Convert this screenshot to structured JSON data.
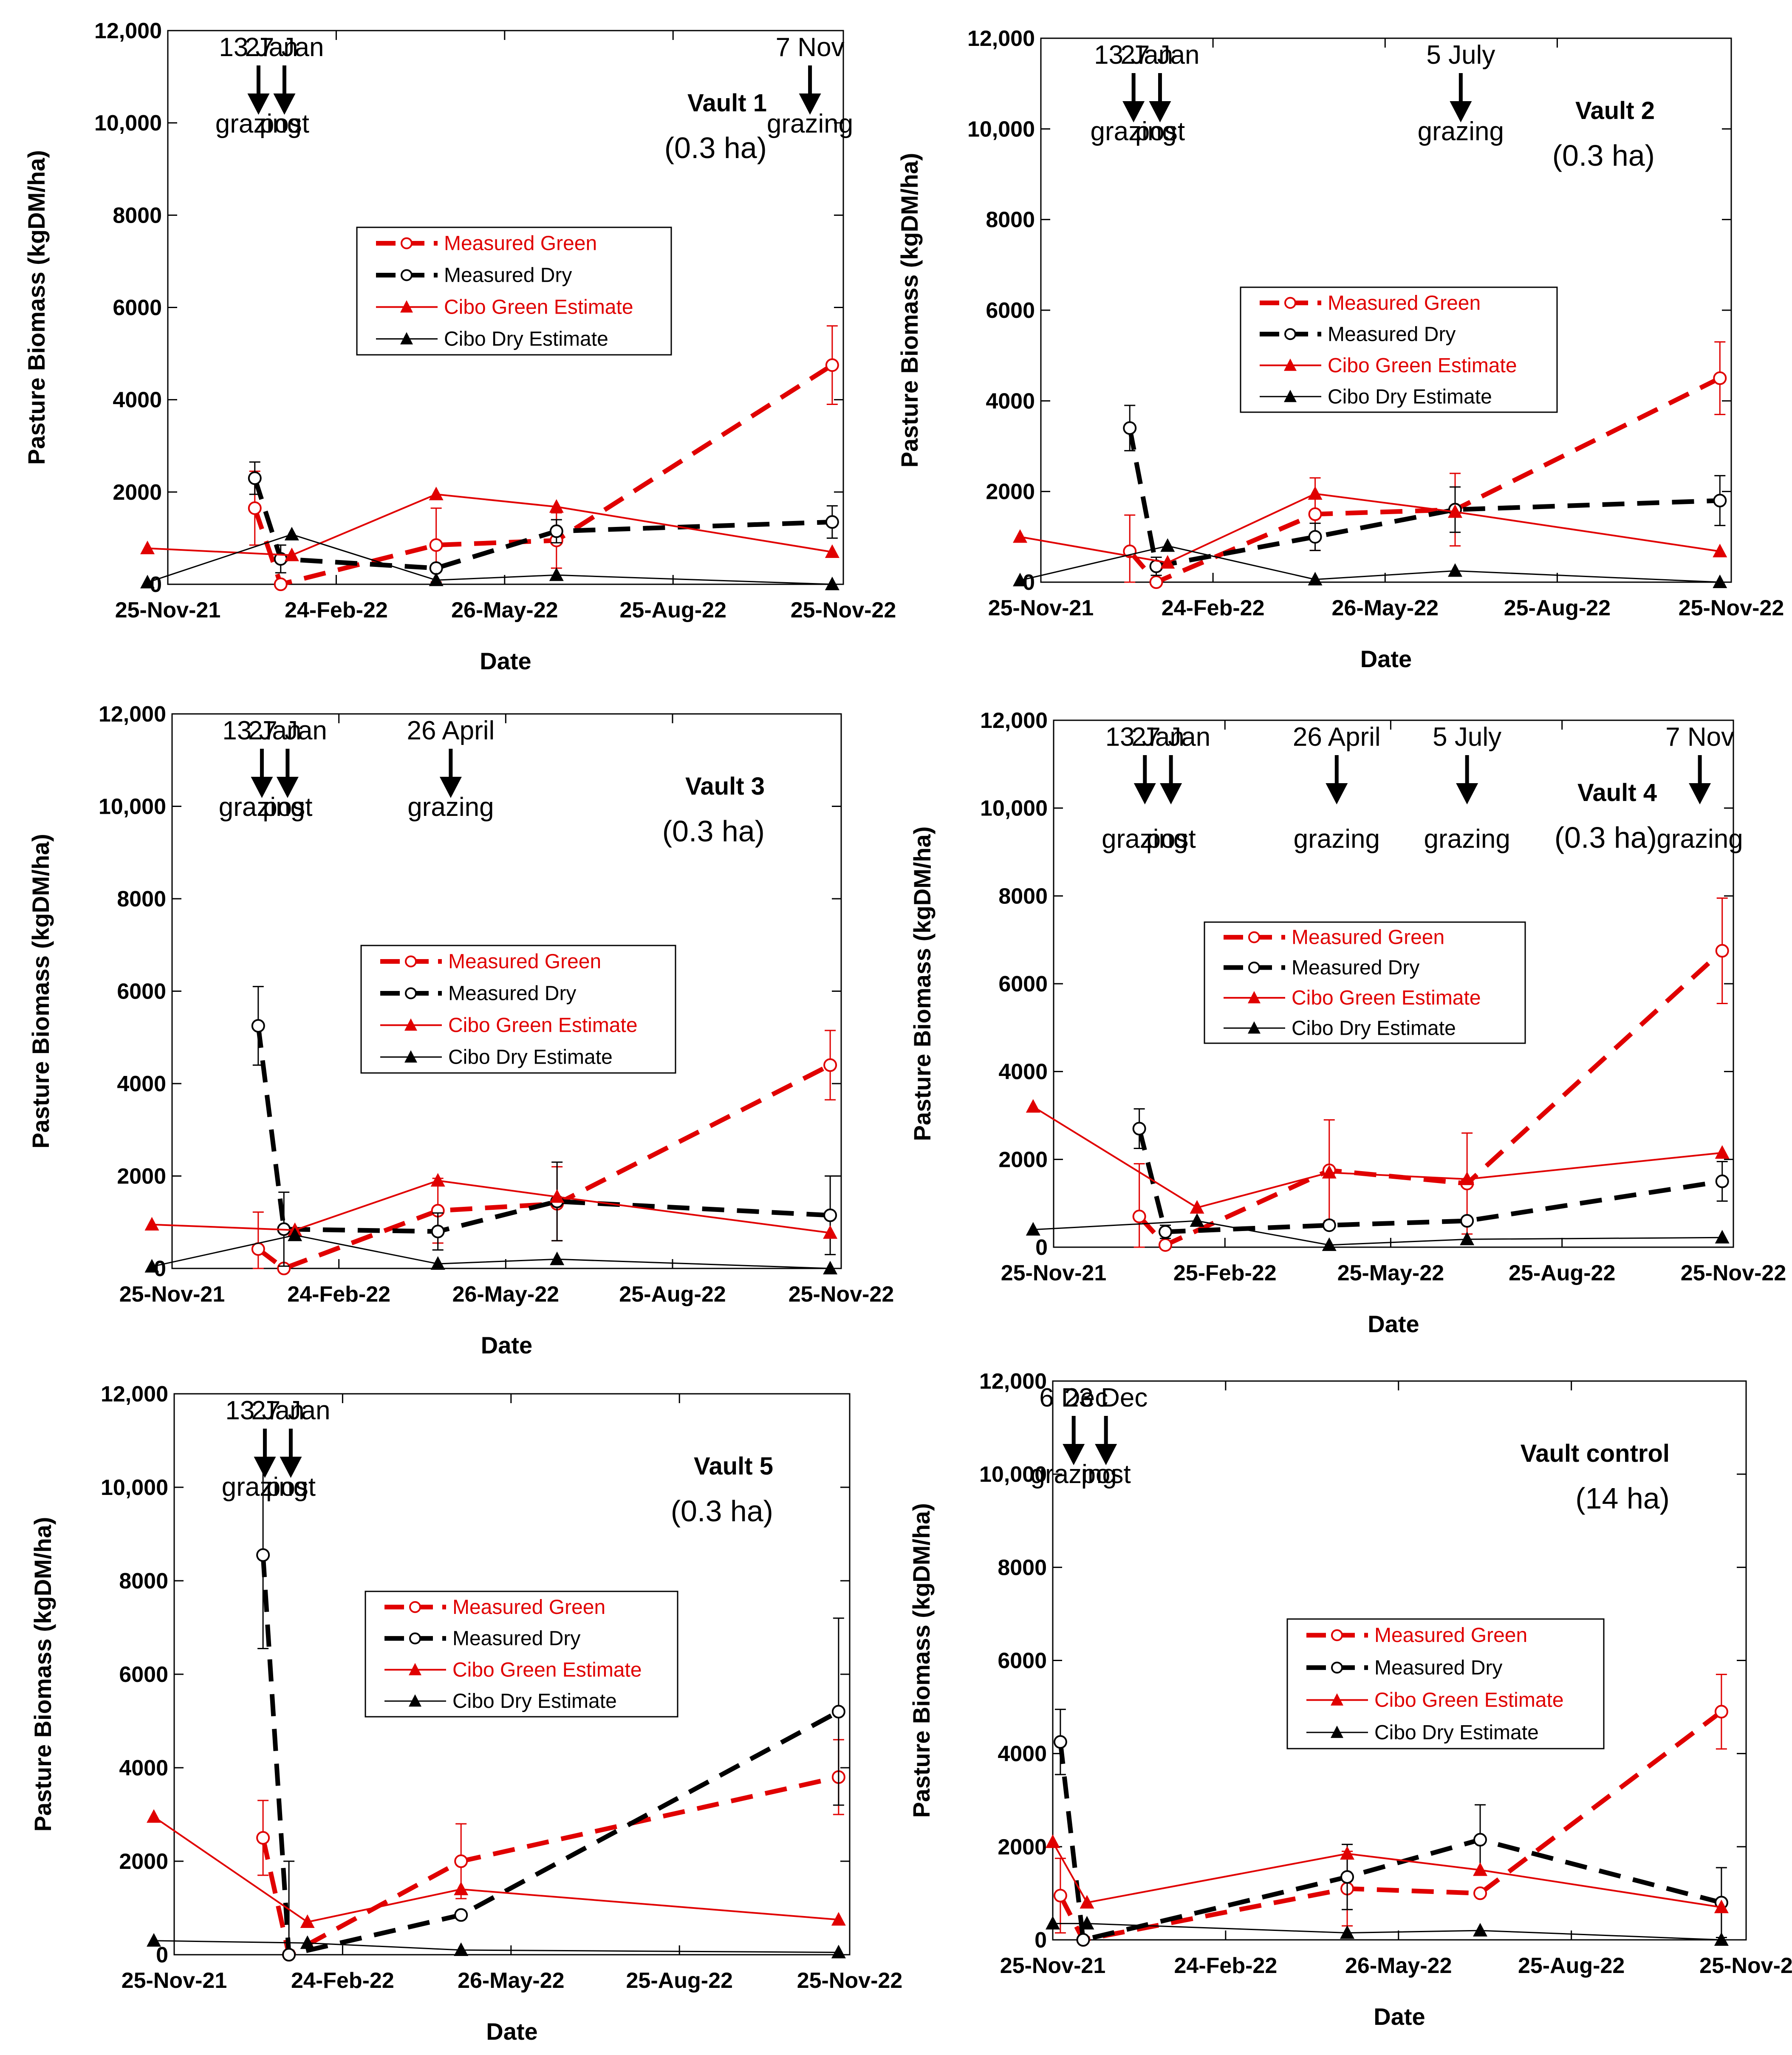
{
  "chart_data": [
    {
      "type": "line",
      "title": "Vault 1",
      "area_label": "(0.3 ha)",
      "xlabel": "Date",
      "ylabel": "Pasture Biomass (kgDM/ha)",
      "ylim": [
        0,
        12000
      ],
      "xlim_days": [
        0,
        365
      ],
      "y_ticks": [
        "0",
        "2000",
        "4000",
        "6000",
        "8000",
        "10,000",
        "12,000"
      ],
      "x_ticks": [
        {
          "label": "25-Nov-21",
          "day": 0
        },
        {
          "label": "24-Feb-22",
          "day": 91
        },
        {
          "label": "26-May-22",
          "day": 182
        },
        {
          "label": "25-Aug-22",
          "day": 273
        },
        {
          "label": "25-Nov-22",
          "day": 365
        }
      ],
      "annotations": [
        {
          "date": "13 Jan",
          "event": "grazing",
          "day": 49
        },
        {
          "date": "27 Jan",
          "event": "post",
          "day": 63
        },
        {
          "date": "7 Nov",
          "event": "grazing",
          "day": 347
        }
      ],
      "legend": [
        "Measured Green",
        "Measured Dry",
        "Cibo Green Estimate",
        "Cibo Dry Estimate"
      ],
      "series": [
        {
          "name": "Measured Green",
          "x": [
            47,
            61,
            145,
            210,
            359
          ],
          "y": [
            1650,
            0,
            850,
            950,
            4750
          ],
          "err": [
            800,
            0,
            800,
            600,
            850
          ]
        },
        {
          "name": "Measured Dry",
          "x": [
            47,
            61,
            145,
            210,
            359
          ],
          "y": [
            2300,
            550,
            350,
            1150,
            1350
          ],
          "err": [
            350,
            300,
            0,
            250,
            350
          ]
        },
        {
          "name": "Cibo Green Estimate",
          "x": [
            -11,
            67,
            145,
            210,
            359
          ],
          "y": [
            780,
            630,
            1950,
            1680,
            700
          ]
        },
        {
          "name": "Cibo Dry Estimate",
          "x": [
            -11,
            67,
            145,
            210,
            359
          ],
          "y": [
            40,
            1080,
            90,
            200,
            0
          ]
        }
      ]
    },
    {
      "type": "line",
      "title": "Vault 2",
      "area_label": "(0.3 ha)",
      "xlabel": "Date",
      "ylabel": "Pasture Biomass (kgDM/ha)",
      "ylim": [
        0,
        12000
      ],
      "xlim_days": [
        0,
        365
      ],
      "y_ticks": [
        "0",
        "2000",
        "4000",
        "6000",
        "8000",
        "10,000",
        "12,000"
      ],
      "x_ticks": [
        {
          "label": "25-Nov-21",
          "day": 0
        },
        {
          "label": "24-Feb-22",
          "day": 91
        },
        {
          "label": "26-May-22",
          "day": 182
        },
        {
          "label": "25-Aug-22",
          "day": 273
        },
        {
          "label": "25-Nov-22",
          "day": 365
        }
      ],
      "annotations": [
        {
          "date": "13 Jan",
          "event": "grazing",
          "day": 49
        },
        {
          "date": "27 Jan",
          "event": "post",
          "day": 63
        },
        {
          "date": "5 July",
          "event": "grazing",
          "day": 222
        }
      ],
      "legend": [
        "Measured Green",
        "Measured Dry",
        "Cibo Green Estimate",
        "Cibo Dry Estimate"
      ],
      "series": [
        {
          "name": "Measured Green",
          "x": [
            47,
            61,
            145,
            219,
            359
          ],
          "y": [
            680,
            0,
            1500,
            1600,
            4500
          ],
          "err": [
            800,
            0,
            800,
            800,
            800
          ]
        },
        {
          "name": "Measured Dry",
          "x": [
            47,
            61,
            145,
            219,
            359
          ],
          "y": [
            3400,
            350,
            1000,
            1600,
            1800
          ],
          "err": [
            500,
            200,
            300,
            500,
            550
          ]
        },
        {
          "name": "Cibo Green Estimate",
          "x": [
            -11,
            67,
            145,
            219,
            359
          ],
          "y": [
            1000,
            430,
            1950,
            1550,
            680
          ]
        },
        {
          "name": "Cibo Dry Estimate",
          "x": [
            -11,
            67,
            145,
            219,
            359
          ],
          "y": [
            40,
            800,
            60,
            250,
            0
          ]
        }
      ]
    },
    {
      "type": "line",
      "title": "Vault 3",
      "area_label": "(0.3 ha)",
      "xlabel": "Date",
      "ylabel": "Pasture Biomass (kgDM/ha)",
      "ylim": [
        0,
        12000
      ],
      "xlim_days": [
        0,
        365
      ],
      "y_ticks": [
        "0",
        "2000",
        "4000",
        "6000",
        "8000",
        "10,000",
        "12,000"
      ],
      "x_ticks": [
        {
          "label": "25-Nov-21",
          "day": 0
        },
        {
          "label": "24-Feb-22",
          "day": 91
        },
        {
          "label": "26-May-22",
          "day": 182
        },
        {
          "label": "25-Aug-22",
          "day": 273
        },
        {
          "label": "25-Nov-22",
          "day": 365
        }
      ],
      "annotations": [
        {
          "date": "13 Jan",
          "event": "grazing",
          "day": 49
        },
        {
          "date": "27 Jan",
          "event": "post",
          "day": 63
        },
        {
          "date": "26 April",
          "event": "grazing",
          "day": 152
        }
      ],
      "legend": [
        "Measured Green",
        "Measured Dry",
        "Cibo Green Estimate",
        "Cibo Dry Estimate"
      ],
      "series": [
        {
          "name": "Measured Green",
          "x": [
            47,
            61,
            145,
            210,
            359
          ],
          "y": [
            420,
            0,
            1250,
            1400,
            4400
          ],
          "err": [
            800,
            0,
            700,
            800,
            750
          ]
        },
        {
          "name": "Measured Dry",
          "x": [
            47,
            61,
            145,
            210,
            359
          ],
          "y": [
            5250,
            850,
            800,
            1450,
            1150
          ],
          "err": [
            850,
            800,
            400,
            850,
            850
          ]
        },
        {
          "name": "Cibo Green Estimate",
          "x": [
            -11,
            67,
            145,
            210,
            359
          ],
          "y": [
            950,
            830,
            1900,
            1550,
            770
          ]
        },
        {
          "name": "Cibo Dry Estimate",
          "x": [
            -11,
            67,
            145,
            210,
            359
          ],
          "y": [
            40,
            720,
            100,
            200,
            0
          ]
        }
      ]
    },
    {
      "type": "line",
      "title": "Vault 4",
      "area_label": "(0.3 ha)",
      "xlabel": "Date",
      "ylabel": "Pasture Biomass (kgDM/ha)",
      "ylim": [
        0,
        12000
      ],
      "xlim_days": [
        0,
        365
      ],
      "y_ticks": [
        "0",
        "2000",
        "4000",
        "6000",
        "8000",
        "10,000",
        "12,000"
      ],
      "x_ticks": [
        {
          "label": "25-Nov-21",
          "day": 0
        },
        {
          "label": "25-Feb-22",
          "day": 92
        },
        {
          "label": "25-May-22",
          "day": 181
        },
        {
          "label": "25-Aug-22",
          "day": 273
        },
        {
          "label": "25-Nov-22",
          "day": 365
        }
      ],
      "annotations": [
        {
          "date": "13 Jan",
          "event": "grazing",
          "day": 49
        },
        {
          "date": "27 Jan",
          "event": "post",
          "day": 63
        },
        {
          "date": "26 April",
          "event": "grazing",
          "day": 152
        },
        {
          "date": "5 July",
          "event": "grazing",
          "day": 222
        },
        {
          "date": "7 Nov",
          "event": "grazing",
          "day": 347
        }
      ],
      "legend": [
        "Measured Green",
        "Measured Dry",
        "Cibo Green Estimate",
        "Cibo Dry Estimate"
      ],
      "series": [
        {
          "name": "Measured Green",
          "x": [
            46,
            60,
            148,
            222,
            359
          ],
          "y": [
            700,
            50,
            1750,
            1450,
            6750
          ],
          "err": [
            1200,
            0,
            1150,
            1150,
            1200
          ]
        },
        {
          "name": "Measured Dry",
          "x": [
            46,
            60,
            148,
            222,
            359
          ],
          "y": [
            2700,
            350,
            500,
            600,
            1500
          ],
          "err": [
            450,
            150,
            0,
            0,
            450
          ]
        },
        {
          "name": "Cibo Green Estimate",
          "x": [
            -11,
            77,
            148,
            222,
            359
          ],
          "y": [
            3200,
            900,
            1700,
            1550,
            2150
          ]
        },
        {
          "name": "Cibo Dry Estimate",
          "x": [
            -11,
            77,
            148,
            222,
            359
          ],
          "y": [
            400,
            600,
            50,
            180,
            220
          ]
        }
      ]
    },
    {
      "type": "line",
      "title": "Vault 5",
      "area_label": "(0.3 ha)",
      "xlabel": "Date",
      "ylabel": "Pasture Biomass (kgDM/ha)",
      "ylim": [
        0,
        12000
      ],
      "xlim_days": [
        0,
        365
      ],
      "y_ticks": [
        "0",
        "2000",
        "4000",
        "6000",
        "8000",
        "10,000",
        "12,000"
      ],
      "x_ticks": [
        {
          "label": "25-Nov-21",
          "day": 0
        },
        {
          "label": "24-Feb-22",
          "day": 91
        },
        {
          "label": "26-May-22",
          "day": 182
        },
        {
          "label": "25-Aug-22",
          "day": 273
        },
        {
          "label": "25-Nov-22",
          "day": 365
        }
      ],
      "annotations": [
        {
          "date": "13 Jan",
          "event": "grazing",
          "day": 49
        },
        {
          "date": "27 Jan",
          "event": "post",
          "day": 63
        }
      ],
      "legend": [
        "Measured Green",
        "Measured Dry",
        "Cibo Green Estimate",
        "Cibo Dry Estimate"
      ],
      "series": [
        {
          "name": "Measured Green",
          "x": [
            48,
            62,
            155,
            359
          ],
          "y": [
            2500,
            0,
            2000,
            3800
          ],
          "err": [
            800,
            0,
            800,
            800
          ]
        },
        {
          "name": "Measured Dry",
          "x": [
            48,
            62,
            155,
            359
          ],
          "y": [
            8550,
            0,
            850,
            5200
          ],
          "err": [
            2000,
            2000,
            0,
            2000
          ]
        },
        {
          "name": "Cibo Green Estimate",
          "x": [
            -11,
            72,
            155,
            359
          ],
          "y": [
            2950,
            700,
            1400,
            750
          ]
        },
        {
          "name": "Cibo Dry Estimate",
          "x": [
            -11,
            72,
            155,
            359
          ],
          "y": [
            300,
            250,
            100,
            50
          ]
        }
      ]
    },
    {
      "type": "line",
      "title": "Vault control",
      "area_label": "(14 ha)",
      "xlabel": "Date",
      "ylabel": "Pasture Biomass (kgDM/ha)",
      "ylim": [
        0,
        12000
      ],
      "xlim_days": [
        0,
        365
      ],
      "y_ticks": [
        "0",
        "2000",
        "4000",
        "6000",
        "8000",
        "10,000",
        "12,000"
      ],
      "x_ticks": [
        {
          "label": "25-Nov-21",
          "day": 0
        },
        {
          "label": "24-Feb-22",
          "day": 91
        },
        {
          "label": "26-May-22",
          "day": 182
        },
        {
          "label": "25-Aug-22",
          "day": 273
        },
        {
          "label": "25-Nov-2",
          "day": 365
        }
      ],
      "annotations": [
        {
          "date": "6 Dec",
          "event": "grazing",
          "day": 11
        },
        {
          "date": "23 Dec",
          "event": "post",
          "day": 28
        }
      ],
      "legend": [
        "Measured Green",
        "Measured Dry",
        "Cibo Green Estimate",
        "Cibo Dry Estimate"
      ],
      "series": [
        {
          "name": "Measured Green",
          "x": [
            4,
            16,
            155,
            225,
            352
          ],
          "y": [
            950,
            0,
            1100,
            1000,
            4900
          ],
          "err": [
            800,
            0,
            800,
            0,
            800
          ]
        },
        {
          "name": "Measured Dry",
          "x": [
            4,
            16,
            155,
            225,
            352
          ],
          "y": [
            4250,
            0,
            1350,
            2150,
            800
          ],
          "err": [
            700,
            0,
            700,
            750,
            750
          ]
        },
        {
          "name": "Cibo Green Estimate",
          "x": [
            0,
            18,
            155,
            225,
            352
          ],
          "y": [
            2100,
            800,
            1850,
            1500,
            700
          ]
        },
        {
          "name": "Cibo Dry Estimate",
          "x": [
            0,
            18,
            155,
            225,
            352
          ],
          "y": [
            350,
            350,
            150,
            200,
            0
          ]
        }
      ]
    }
  ]
}
